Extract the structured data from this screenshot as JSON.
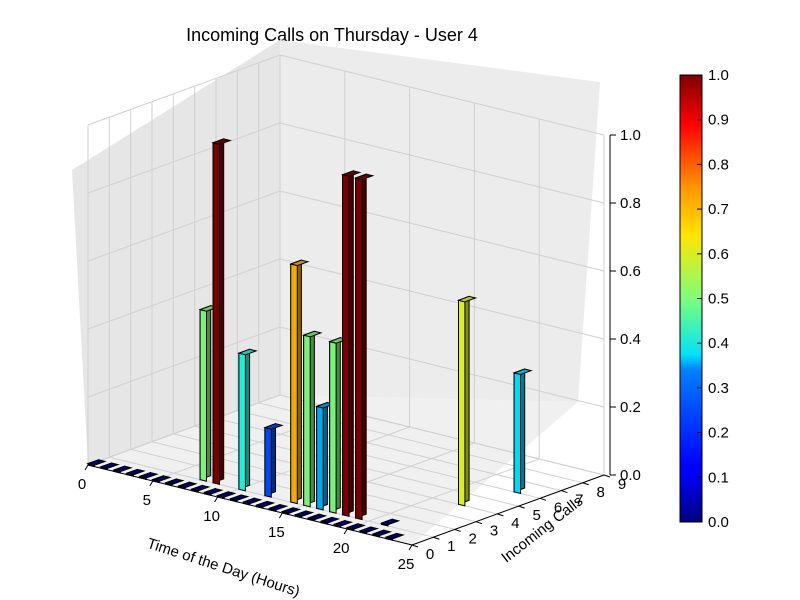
{
  "chart_data": {
    "type": "bar3d",
    "title": "Incoming Calls on Thursday - User 4",
    "xlabel": "Time of the Day (Hours)",
    "ylabel": "Incoming Calls",
    "xlim": [
      0,
      25
    ],
    "ylim": [
      0,
      9
    ],
    "zlim": [
      0,
      1.0
    ],
    "xticks": [
      "0",
      "5",
      "10",
      "15",
      "20",
      "25"
    ],
    "yticks": [
      "0",
      "1",
      "2",
      "3",
      "4",
      "5",
      "6",
      "7",
      "8",
      "9"
    ],
    "zticks": [
      "0.0",
      "0.2",
      "0.4",
      "0.6",
      "0.8",
      "1.0"
    ],
    "grid": true,
    "colormap": "jet",
    "colorbar": {
      "range": [
        0.0,
        1.0
      ],
      "ticks": [
        "0.0",
        "0.1",
        "0.2",
        "0.3",
        "0.4",
        "0.5",
        "0.6",
        "0.7",
        "0.8",
        "0.9",
        "1.0"
      ]
    },
    "bars": [
      {
        "x": 0,
        "y": 0,
        "value": 0.0
      },
      {
        "x": 1,
        "y": 0,
        "value": 0.0
      },
      {
        "x": 2,
        "y": 0,
        "value": 0.0
      },
      {
        "x": 3,
        "y": 0,
        "value": 0.0
      },
      {
        "x": 4,
        "y": 0,
        "value": 0.0
      },
      {
        "x": 5,
        "y": 0,
        "value": 0.0
      },
      {
        "x": 6,
        "y": 0,
        "value": 0.0
      },
      {
        "x": 7,
        "y": 0,
        "value": 0.0
      },
      {
        "x": 8,
        "y": 0,
        "value": 0.0
      },
      {
        "x": 9,
        "y": 0,
        "value": 0.0
      },
      {
        "x": 10,
        "y": 0,
        "value": 0.0
      },
      {
        "x": 11,
        "y": 0,
        "value": 0.0
      },
      {
        "x": 12,
        "y": 0,
        "value": 0.0
      },
      {
        "x": 13,
        "y": 0,
        "value": 0.0
      },
      {
        "x": 14,
        "y": 0,
        "value": 0.0
      },
      {
        "x": 15,
        "y": 0,
        "value": 0.0
      },
      {
        "x": 16,
        "y": 0,
        "value": 0.0
      },
      {
        "x": 17,
        "y": 0,
        "value": 0.0
      },
      {
        "x": 18,
        "y": 0,
        "value": 0.0
      },
      {
        "x": 19,
        "y": 0,
        "value": 0.0
      },
      {
        "x": 20,
        "y": 0,
        "value": 0.0
      },
      {
        "x": 21,
        "y": 0,
        "value": 0.0
      },
      {
        "x": 22,
        "y": 0,
        "value": 0.0
      },
      {
        "x": 23,
        "y": 0,
        "value": 0.0
      },
      {
        "x": 7,
        "y": 1,
        "value": 0.5
      },
      {
        "x": 8,
        "y": 1,
        "value": 1.0
      },
      {
        "x": 10,
        "y": 1,
        "value": 0.4
      },
      {
        "x": 12,
        "y": 1,
        "value": 0.2
      },
      {
        "x": 14,
        "y": 1,
        "value": 0.7
      },
      {
        "x": 15,
        "y": 1,
        "value": 0.5
      },
      {
        "x": 16,
        "y": 1,
        "value": 0.3
      },
      {
        "x": 17,
        "y": 1,
        "value": 0.5
      },
      {
        "x": 18,
        "y": 1,
        "value": 1.0
      },
      {
        "x": 19,
        "y": 1,
        "value": 1.0
      },
      {
        "x": 21,
        "y": 1,
        "value": 0.0
      },
      {
        "x": 22,
        "y": 4,
        "value": 0.6
      },
      {
        "x": 23,
        "y": 6,
        "value": 0.35
      }
    ]
  }
}
